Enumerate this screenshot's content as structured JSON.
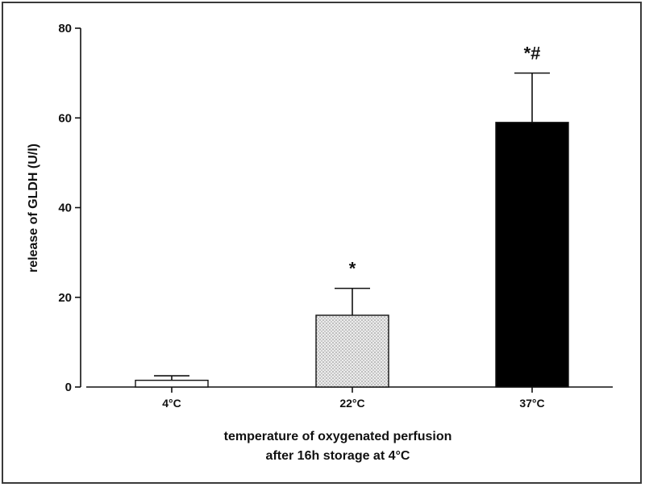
{
  "chart_data": {
    "type": "bar",
    "categories": [
      "4°C",
      "22°C",
      "37°C"
    ],
    "series": [
      {
        "values": [
          1.5,
          16,
          59
        ],
        "error_plus": [
          1.0,
          6,
          11
        ],
        "fills": [
          "#ffffff",
          "dotted-light-gray",
          "#000000"
        ]
      }
    ],
    "significance": [
      "",
      "*",
      "*#"
    ],
    "ylabel": "release of GLDH (U/l)",
    "xlabel_line1": "temperature of oxygenated perfusion",
    "xlabel_line2": "after 16h storage at  4°C",
    "ylim": [
      0,
      80
    ],
    "yticks": [
      0,
      20,
      40,
      60,
      80
    ],
    "grid": false
  }
}
